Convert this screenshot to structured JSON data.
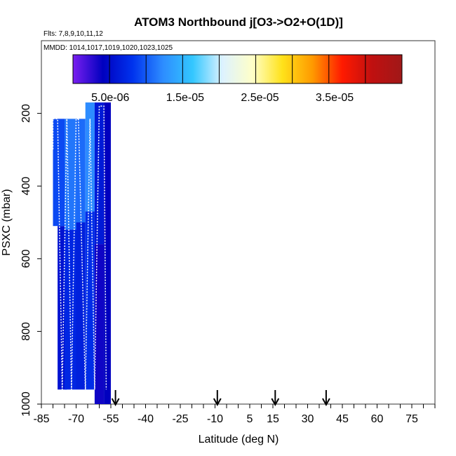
{
  "chart_data": {
    "type": "heatmap",
    "title": "ATOM3 Northbound j[O3->O2+O(1D)]",
    "flights_note": "Flts: 7,8,9,10,11,12",
    "dates_note": "MMDD: 1014,1017,1019,1020,1023,1025",
    "xlabel": "Latitude (deg N)",
    "ylabel": "PSXC (mbar)",
    "xlim": [
      -85,
      85
    ],
    "ylim": [
      1000,
      0
    ],
    "x_ticks": [
      -85,
      -70,
      -55,
      -40,
      -25,
      -10,
      5,
      15,
      30,
      45,
      60,
      75
    ],
    "y_ticks": [
      200,
      400,
      600,
      800,
      1000
    ],
    "colorbar": {
      "min": 0,
      "max": 4.4e-05,
      "tick_values": [
        5e-06,
        1.5e-05,
        2.5e-05,
        3.5e-05
      ],
      "tick_labels": [
        "5.0e-06",
        "1.5e-05",
        "2.5e-05",
        "3.5e-05"
      ],
      "colors": [
        "#7a1ff0",
        "#0000bf",
        "#0033ee",
        "#2d8cff",
        "#33c7ff",
        "#ddf2ff",
        "#ffffc8",
        "#ffe21a",
        "#ff9a00",
        "#ff1a00",
        "#c01010",
        "#a01818"
      ]
    },
    "arrows_latitude": [
      -53,
      -9,
      16,
      38
    ],
    "columns": [
      {
        "lat_min": -80,
        "lat_max": -75,
        "p_top": 215,
        "p_bottom": 510,
        "value": 9e-06
      },
      {
        "lat_min": -78,
        "lat_max": -74,
        "p_top": 510,
        "p_bottom": 960,
        "value": 5.5e-06
      },
      {
        "lat_min": -75,
        "lat_max": -70,
        "p_top": 215,
        "p_bottom": 520,
        "value": 1.1e-05
      },
      {
        "lat_min": -75,
        "lat_max": -70,
        "p_top": 520,
        "p_bottom": 960,
        "value": 7e-06
      },
      {
        "lat_min": -70,
        "lat_max": -66,
        "p_top": 215,
        "p_bottom": 500,
        "value": 1.05e-05
      },
      {
        "lat_min": -70,
        "lat_max": -66,
        "p_top": 500,
        "p_bottom": 960,
        "value": 6.5e-06
      },
      {
        "lat_min": -66,
        "lat_max": -62,
        "p_top": 170,
        "p_bottom": 470,
        "value": 1.2e-05
      },
      {
        "lat_min": -66,
        "lat_max": -62,
        "p_top": 470,
        "p_bottom": 960,
        "value": 7.5e-06
      },
      {
        "lat_min": -62,
        "lat_max": -58,
        "p_top": 170,
        "p_bottom": 560,
        "value": 6e-06
      },
      {
        "lat_min": -62,
        "lat_max": -58,
        "p_top": 560,
        "p_bottom": 1000,
        "value": 3.5e-06
      },
      {
        "lat_min": -58,
        "lat_max": -55,
        "p_top": 170,
        "p_bottom": 1000,
        "value": 4e-06
      }
    ]
  }
}
